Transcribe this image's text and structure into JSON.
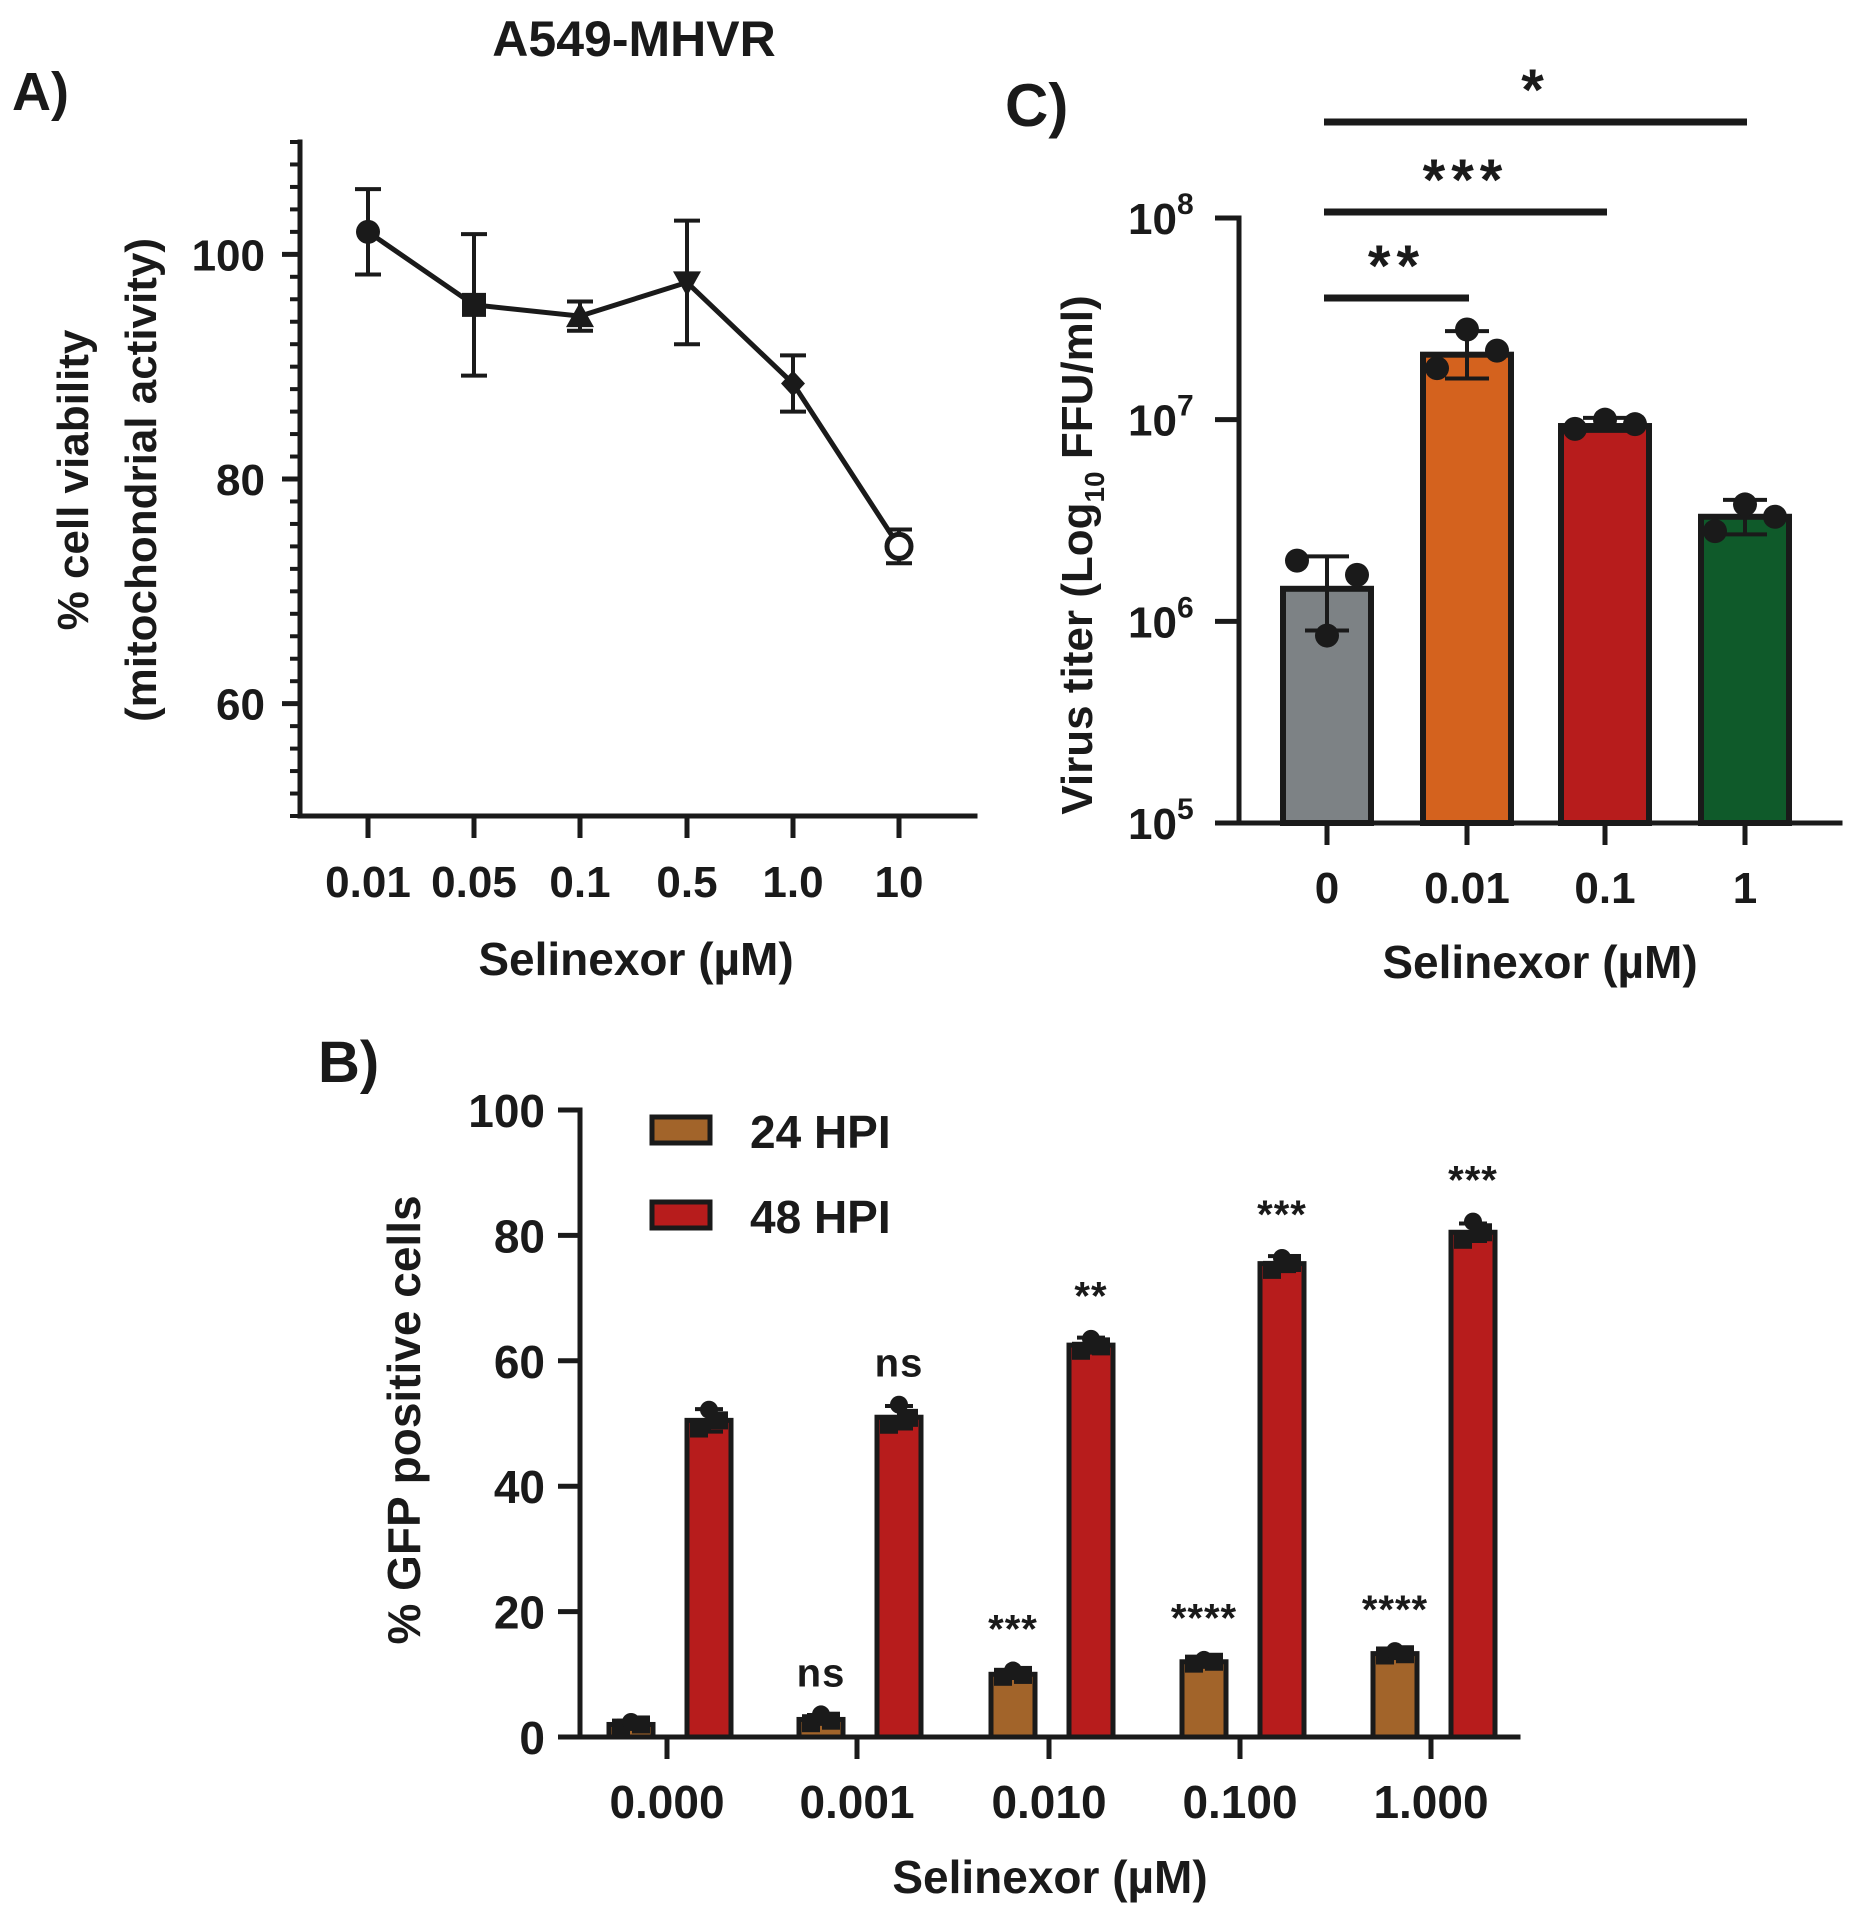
{
  "chart_data": [
    {
      "panel_label": "A)",
      "type": "line",
      "title": "A549-MHVR",
      "xlabel": "Selinexor (µM)",
      "ylabel": "% cell viability",
      "ylabel2": "(mitochondrial activity)",
      "categories": [
        "0.01",
        "0.05",
        "0.1",
        "0.5",
        "1.0",
        "10"
      ],
      "markers": [
        "circle",
        "square",
        "triangle-up",
        "triangle-down",
        "diamond",
        "circle-open"
      ],
      "series": [
        {
          "name": "cell viability",
          "values": [
            102.0,
            95.5,
            94.5,
            97.5,
            88.5,
            74.0
          ],
          "error": [
            3.8,
            6.3,
            1.3,
            5.5,
            2.5,
            1.5
          ]
        }
      ],
      "ylim": [
        50,
        110
      ],
      "yticks": [
        60,
        80,
        100
      ],
      "yticks_labels": [
        "60",
        "80",
        "100"
      ],
      "grid": false,
      "color": "#1a1a1a"
    },
    {
      "panel_label": "B)",
      "type": "bar",
      "title": "",
      "xlabel": "Selinexor (µM)",
      "ylabel": "% GFP positive cells",
      "categories": [
        "0.000",
        "0.001",
        "0.010",
        "0.100",
        "1.000"
      ],
      "series": [
        {
          "name": "24 HPI",
          "color": "#a2642a",
          "values": [
            2.0,
            2.8,
            10.0,
            12.0,
            13.3
          ],
          "error": [
            0.6,
            0.7,
            0.6,
            0.4,
            0.4
          ],
          "points": [
            [
              1.5,
              2.4,
              2.0
            ],
            [
              2.2,
              3.6,
              2.6
            ],
            [
              9.6,
              10.6,
              9.9
            ],
            [
              11.7,
              12.3,
              12.0
            ],
            [
              13.0,
              13.7,
              13.2
            ]
          ],
          "significance": [
            "",
            "ns",
            "***",
            "****",
            "****"
          ]
        },
        {
          "name": "48 HPI",
          "color": "#b71c1c",
          "values": [
            50.5,
            51.0,
            62.5,
            75.5,
            80.5
          ],
          "error": [
            1.8,
            1.8,
            1.2,
            1.2,
            1.4
          ],
          "points": [
            [
              49.2,
              52.2,
              50.5
            ],
            [
              49.8,
              53.0,
              50.9
            ],
            [
              61.6,
              63.5,
              62.3
            ],
            [
              74.5,
              76.4,
              75.6
            ],
            [
              79.3,
              82.2,
              80.5
            ]
          ],
          "significance": [
            "",
            "ns",
            "**",
            "***",
            "***"
          ]
        }
      ],
      "ylim": [
        0,
        100
      ],
      "yticks": [
        0,
        20,
        40,
        60,
        80,
        100
      ],
      "yticks_labels": [
        "0",
        "20",
        "40",
        "60",
        "80",
        "100"
      ],
      "legend": "top-left",
      "grid": false
    },
    {
      "panel_label": "C)",
      "type": "bar",
      "title": "",
      "xlabel": "Selinexor (µM)",
      "ylabel_parts": [
        "Virus titer (Log",
        "10",
        " FFU/ml)"
      ],
      "yscale": "log",
      "categories": [
        "0",
        "0.01",
        "0.1",
        "1"
      ],
      "colors": [
        "#7d8285",
        "#d4621e",
        "#b71c1c",
        "#0f5a2a"
      ],
      "values": [
        1450000.0,
        21000000.0,
        9300000.0,
        3300000.0
      ],
      "error_low": [
        550000.0,
        5000000.0,
        500000.0,
        600000.0
      ],
      "error_high": [
        650000.0,
        6500000.0,
        900000.0,
        700000.0
      ],
      "points": [
        [
          2000000.0,
          850000.0,
          1700000.0
        ],
        [
          18000000.0,
          28000000.0,
          22000000.0
        ],
        [
          9000000.0,
          10000000.0,
          9500000.0
        ],
        [
          2800000.0,
          3800000.0,
          3300000.0
        ]
      ],
      "ylim": [
        100000,
        100000000
      ],
      "ytick_base": "10",
      "ytick_exponents": [
        "5",
        "6",
        "7",
        "8"
      ],
      "significance": [
        {
          "from": "0",
          "to": "0.01",
          "label": "**"
        },
        {
          "from": "0",
          "to": "0.1",
          "label": "***"
        },
        {
          "from": "0",
          "to": "1",
          "label": "*"
        }
      ],
      "grid": false
    }
  ]
}
